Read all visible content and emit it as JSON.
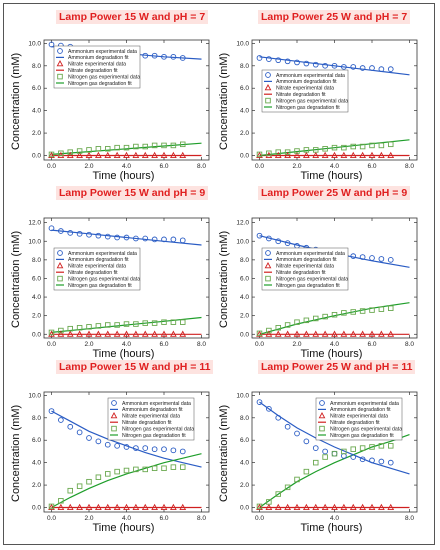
{
  "colors": {
    "ammonium": "#2a5cc4",
    "nitrate": "#d02020",
    "nitrogen": "#1e9e2a",
    "nitrogen_points": "#6aa84f",
    "title_text": "#e02020",
    "title_bg": "#fde3e0"
  },
  "legend_entries": [
    "Ammonium experimental data",
    "Ammonium degradation fit",
    "Nitrate experimental data",
    "Nitrate degradation fit",
    "Nitrogen gas experimental data",
    "Nitrogen gas degradation fit"
  ],
  "chart_data": [
    {
      "type": "scatter",
      "title": "Lamp Power 15 W and pH = 7",
      "xlabel": "Time (hours)",
      "ylabel": "Concentration (mM)",
      "xlim": [
        -0.4,
        8.4
      ],
      "ylim": [
        -0.4,
        10.3
      ],
      "xticks": [
        "0.0",
        "2.0",
        "4.0",
        "6.0",
        "8.0"
      ],
      "yticks": [
        "0.0",
        "2.0",
        "4.0",
        "6.0",
        "8.0",
        "10.0"
      ],
      "legend": "top-left",
      "x": [
        0,
        0.5,
        1,
        1.5,
        2,
        2.5,
        3,
        3.5,
        4,
        4.5,
        5,
        5.5,
        6,
        6.5,
        7
      ],
      "series": [
        {
          "name": "Ammonium experimental data",
          "values": [
            9.9,
            9.8,
            9.7,
            9.5,
            9.4,
            9.4,
            9.3,
            9.2,
            9.1,
            9.0,
            8.9,
            8.9,
            8.8,
            8.8,
            8.7
          ]
        },
        {
          "name": "Nitrate experimental data",
          "values": [
            0.0,
            0.0,
            0.0,
            0.0,
            0.0,
            0.0,
            0.0,
            0.0,
            0.0,
            0.0,
            0.0,
            0.0,
            0.0,
            0.0,
            0.0
          ]
        },
        {
          "name": "Nitrogen gas experimental data",
          "values": [
            0.1,
            0.2,
            0.3,
            0.4,
            0.5,
            0.6,
            0.6,
            0.7,
            0.7,
            0.8,
            0.8,
            0.9,
            0.9,
            0.9,
            1.0
          ]
        }
      ],
      "fits": [
        {
          "name": "Ammonium degradation fit",
          "x": [
            0,
            2,
            4,
            6,
            8
          ],
          "values": [
            9.7,
            9.4,
            9.1,
            8.8,
            8.6
          ]
        },
        {
          "name": "Nitrate degradation fit",
          "x": [
            0,
            8
          ],
          "values": [
            0.0,
            0.0
          ]
        },
        {
          "name": "Nitrogen gas degradation fit",
          "x": [
            0,
            2,
            4,
            6,
            8
          ],
          "values": [
            0.1,
            0.35,
            0.6,
            0.85,
            1.1
          ]
        }
      ]
    },
    {
      "type": "scatter",
      "title": "Lamp Power 25 W and pH = 7",
      "xlabel": "Time (hours)",
      "ylabel": "Concentration (mM)",
      "xlim": [
        -0.4,
        8.4
      ],
      "ylim": [
        -0.4,
        10.3
      ],
      "xticks": [
        "0.0",
        "2.0",
        "4.0",
        "6.0",
        "8.0"
      ],
      "yticks": [
        "0.0",
        "2.0",
        "4.0",
        "6.0",
        "8.0",
        "10.0"
      ],
      "legend": "center-left",
      "x": [
        0,
        0.5,
        1,
        1.5,
        2,
        2.5,
        3,
        3.5,
        4,
        4.5,
        5,
        5.5,
        6,
        6.5,
        7
      ],
      "series": [
        {
          "name": "Ammonium experimental data",
          "values": [
            8.7,
            8.6,
            8.5,
            8.4,
            8.3,
            8.2,
            8.1,
            8.0,
            8.0,
            7.9,
            7.9,
            7.8,
            7.8,
            7.7,
            7.7
          ]
        },
        {
          "name": "Nitrate experimental data",
          "values": [
            0.0,
            0.0,
            0.0,
            0.0,
            0.0,
            0.0,
            0.0,
            0.0,
            0.0,
            0.0,
            0.0,
            0.0,
            0.0,
            0.0,
            0.0
          ]
        },
        {
          "name": "Nitrogen gas experimental data",
          "values": [
            0.1,
            0.2,
            0.3,
            0.3,
            0.4,
            0.5,
            0.5,
            0.6,
            0.7,
            0.7,
            0.8,
            0.8,
            0.9,
            0.9,
            1.0
          ]
        }
      ],
      "fits": [
        {
          "name": "Ammonium degradation fit",
          "x": [
            0,
            2,
            4,
            6,
            8
          ],
          "values": [
            8.8,
            8.4,
            8.0,
            7.6,
            7.2
          ]
        },
        {
          "name": "Nitrate degradation fit",
          "x": [
            0,
            8
          ],
          "values": [
            0.0,
            0.0
          ]
        },
        {
          "name": "Nitrogen gas degradation fit",
          "x": [
            0,
            2,
            4,
            6,
            8
          ],
          "values": [
            0.0,
            0.35,
            0.7,
            1.05,
            1.4
          ]
        }
      ]
    },
    {
      "type": "scatter",
      "title": "Lamp Power 15 W and pH = 9",
      "xlabel": "Time (hours)",
      "ylabel": "Concentration (mM)",
      "xlim": [
        -0.4,
        8.4
      ],
      "ylim": [
        -0.4,
        12.5
      ],
      "xticks": [
        "0.0",
        "2.0",
        "4.0",
        "6.0",
        "8.0"
      ],
      "yticks": [
        "0.0",
        "2.0",
        "4.0",
        "6.0",
        "8.0",
        "10.0",
        "12.0"
      ],
      "legend": "center-left",
      "x": [
        0,
        0.5,
        1,
        1.5,
        2,
        2.5,
        3,
        3.5,
        4,
        4.5,
        5,
        5.5,
        6,
        6.5,
        7
      ],
      "series": [
        {
          "name": "Ammonium experimental data",
          "values": [
            11.4,
            11.1,
            10.9,
            10.8,
            10.7,
            10.6,
            10.5,
            10.4,
            10.4,
            10.3,
            10.3,
            10.2,
            10.2,
            10.2,
            10.1
          ]
        },
        {
          "name": "Nitrate experimental data",
          "values": [
            0.0,
            0.0,
            0.0,
            0.0,
            0.0,
            0.0,
            0.0,
            0.0,
            0.0,
            0.0,
            0.0,
            0.0,
            0.0,
            0.0,
            0.0
          ]
        },
        {
          "name": "Nitrogen gas experimental data",
          "values": [
            0.2,
            0.4,
            0.6,
            0.7,
            0.8,
            0.9,
            1.0,
            1.0,
            1.1,
            1.1,
            1.2,
            1.2,
            1.3,
            1.3,
            1.3
          ]
        }
      ],
      "fits": [
        {
          "name": "Ammonium degradation fit",
          "x": [
            0,
            2,
            4,
            6,
            8
          ],
          "values": [
            11.2,
            10.8,
            10.4,
            10.0,
            9.6
          ]
        },
        {
          "name": "Nitrate degradation fit",
          "x": [
            0,
            8
          ],
          "values": [
            0.0,
            0.0
          ]
        },
        {
          "name": "Nitrogen gas degradation fit",
          "x": [
            0,
            2,
            4,
            6,
            8
          ],
          "values": [
            0.2,
            0.6,
            1.0,
            1.4,
            1.8
          ]
        }
      ]
    },
    {
      "type": "scatter",
      "title": "Lamp Power 25 W and pH = 9",
      "xlabel": "Time (hours)",
      "ylabel": "Concentration (mM)",
      "xlim": [
        -0.4,
        8.4
      ],
      "ylim": [
        -0.4,
        12.5
      ],
      "xticks": [
        "0.0",
        "2.0",
        "4.0",
        "6.0",
        "8.0"
      ],
      "yticks": [
        "0.0",
        "2.0",
        "4.0",
        "6.0",
        "8.0",
        "10.0",
        "12.0"
      ],
      "legend": "center-left",
      "x": [
        0,
        0.5,
        1,
        1.5,
        2,
        2.5,
        3,
        3.5,
        4,
        4.5,
        5,
        5.5,
        6,
        6.5,
        7
      ],
      "series": [
        {
          "name": "Ammonium experimental data",
          "values": [
            10.6,
            10.3,
            10.0,
            9.8,
            9.5,
            9.3,
            9.1,
            8.9,
            8.7,
            8.5,
            8.4,
            8.3,
            8.2,
            8.1,
            8.0
          ]
        },
        {
          "name": "Nitrate experimental data",
          "values": [
            0.0,
            0.0,
            0.0,
            0.0,
            0.0,
            0.0,
            0.0,
            0.0,
            0.0,
            0.0,
            0.0,
            0.0,
            0.0,
            0.0,
            0.0
          ]
        },
        {
          "name": "Nitrogen gas experimental data",
          "values": [
            0.1,
            0.4,
            0.7,
            1.0,
            1.3,
            1.5,
            1.7,
            1.9,
            2.1,
            2.3,
            2.4,
            2.5,
            2.6,
            2.7,
            2.8
          ]
        }
      ],
      "fits": [
        {
          "name": "Ammonium degradation fit",
          "x": [
            0,
            2,
            4,
            6,
            8
          ],
          "values": [
            10.6,
            9.6,
            8.7,
            7.9,
            7.2
          ]
        },
        {
          "name": "Nitrate degradation fit",
          "x": [
            0,
            8
          ],
          "values": [
            0.0,
            0.0
          ]
        },
        {
          "name": "Nitrogen gas degradation fit",
          "x": [
            0,
            2,
            4,
            6,
            8
          ],
          "values": [
            0.0,
            1.1,
            2.0,
            2.8,
            3.4
          ]
        }
      ]
    },
    {
      "type": "scatter",
      "title": "Lamp Power 15 W and pH = 11",
      "xlabel": "Time (hours)",
      "ylabel": "Concentration (mM)",
      "xlim": [
        -0.4,
        8.4
      ],
      "ylim": [
        -0.4,
        10.3
      ],
      "xticks": [
        "0.0",
        "2.0",
        "4.0",
        "6.0",
        "8.0"
      ],
      "yticks": [
        "0.0",
        "2.0",
        "4.0",
        "6.0",
        "8.0",
        "10.0"
      ],
      "legend": "top-right",
      "x": [
        0,
        0.5,
        1,
        1.5,
        2,
        2.5,
        3,
        3.5,
        4,
        4.5,
        5,
        5.5,
        6,
        6.5,
        7
      ],
      "series": [
        {
          "name": "Ammonium experimental data",
          "values": [
            8.6,
            7.8,
            7.2,
            6.7,
            6.2,
            5.9,
            5.6,
            5.5,
            5.4,
            5.3,
            5.3,
            5.2,
            5.2,
            5.1,
            5.0
          ]
        },
        {
          "name": "Nitrate experimental data",
          "values": [
            0.0,
            0.0,
            0.0,
            0.0,
            0.0,
            0.0,
            0.0,
            0.0,
            0.0,
            0.0,
            0.0,
            0.0,
            0.0,
            0.0,
            0.0
          ]
        },
        {
          "name": "Nitrogen gas experimental data",
          "values": [
            0.1,
            0.6,
            1.5,
            1.9,
            2.3,
            2.7,
            3.0,
            3.2,
            3.3,
            3.4,
            3.4,
            3.5,
            3.5,
            3.6,
            3.6
          ]
        }
      ],
      "fits": [
        {
          "name": "Ammonium degradation fit",
          "x": [
            0,
            1,
            2,
            3,
            4,
            5,
            6,
            7,
            8
          ],
          "values": [
            8.6,
            7.7,
            6.8,
            6.1,
            5.5,
            4.9,
            4.4,
            4.0,
            3.6
          ]
        },
        {
          "name": "Nitrate degradation fit",
          "x": [
            0,
            8
          ],
          "values": [
            0.0,
            0.0
          ]
        },
        {
          "name": "Nitrogen gas degradation fit",
          "x": [
            0,
            1,
            2,
            3,
            4,
            5,
            6,
            7,
            8
          ],
          "values": [
            0.0,
            0.9,
            1.7,
            2.4,
            3.0,
            3.5,
            4.0,
            4.4,
            4.8
          ]
        }
      ]
    },
    {
      "type": "scatter",
      "title": "Lamp Power 25 W and pH = 11",
      "xlabel": "Time (hours)",
      "ylabel": "Concentration (mM)",
      "xlim": [
        -0.4,
        8.4
      ],
      "ylim": [
        -0.4,
        10.3
      ],
      "xticks": [
        "0.0",
        "4.0",
        "8.0"
      ],
      "yticks": [
        "0.0",
        "2.0",
        "4.0",
        "6.0",
        "8.0",
        "10.0"
      ],
      "legend": "top-right",
      "x": [
        0,
        0.5,
        1,
        1.5,
        2,
        2.5,
        3,
        3.5,
        4,
        4.5,
        5,
        5.5,
        6,
        6.5,
        7
      ],
      "series": [
        {
          "name": "Ammonium experimental data",
          "values": [
            9.4,
            8.8,
            8.0,
            7.2,
            6.6,
            5.9,
            5.3,
            5.0,
            4.8,
            4.6,
            4.5,
            4.3,
            4.2,
            4.1,
            4.0
          ]
        },
        {
          "name": "Nitrate experimental data",
          "values": [
            0.0,
            0.0,
            0.0,
            0.0,
            0.0,
            0.0,
            0.0,
            0.0,
            0.0,
            0.0,
            0.0,
            0.0,
            0.0,
            0.0,
            0.0
          ]
        },
        {
          "name": "Nitrogen gas experimental data",
          "values": [
            0.1,
            0.5,
            1.2,
            1.8,
            2.5,
            3.2,
            4.0,
            4.5,
            4.8,
            5.0,
            5.2,
            5.3,
            5.4,
            5.5,
            5.5
          ]
        }
      ],
      "fits": [
        {
          "name": "Ammonium degradation fit",
          "x": [
            0,
            1,
            2,
            3,
            4,
            5,
            6,
            7,
            8
          ],
          "values": [
            9.4,
            8.2,
            7.1,
            6.2,
            5.4,
            4.7,
            4.0,
            3.5,
            3.0
          ]
        },
        {
          "name": "Nitrate degradation fit",
          "x": [
            0,
            8
          ],
          "values": [
            0.0,
            0.0
          ]
        },
        {
          "name": "Nitrogen gas degradation fit",
          "x": [
            0,
            1,
            2,
            3,
            4,
            5,
            6,
            7,
            8
          ],
          "values": [
            0.0,
            1.2,
            2.3,
            3.2,
            4.0,
            4.7,
            5.4,
            5.9,
            6.5
          ]
        }
      ]
    }
  ]
}
